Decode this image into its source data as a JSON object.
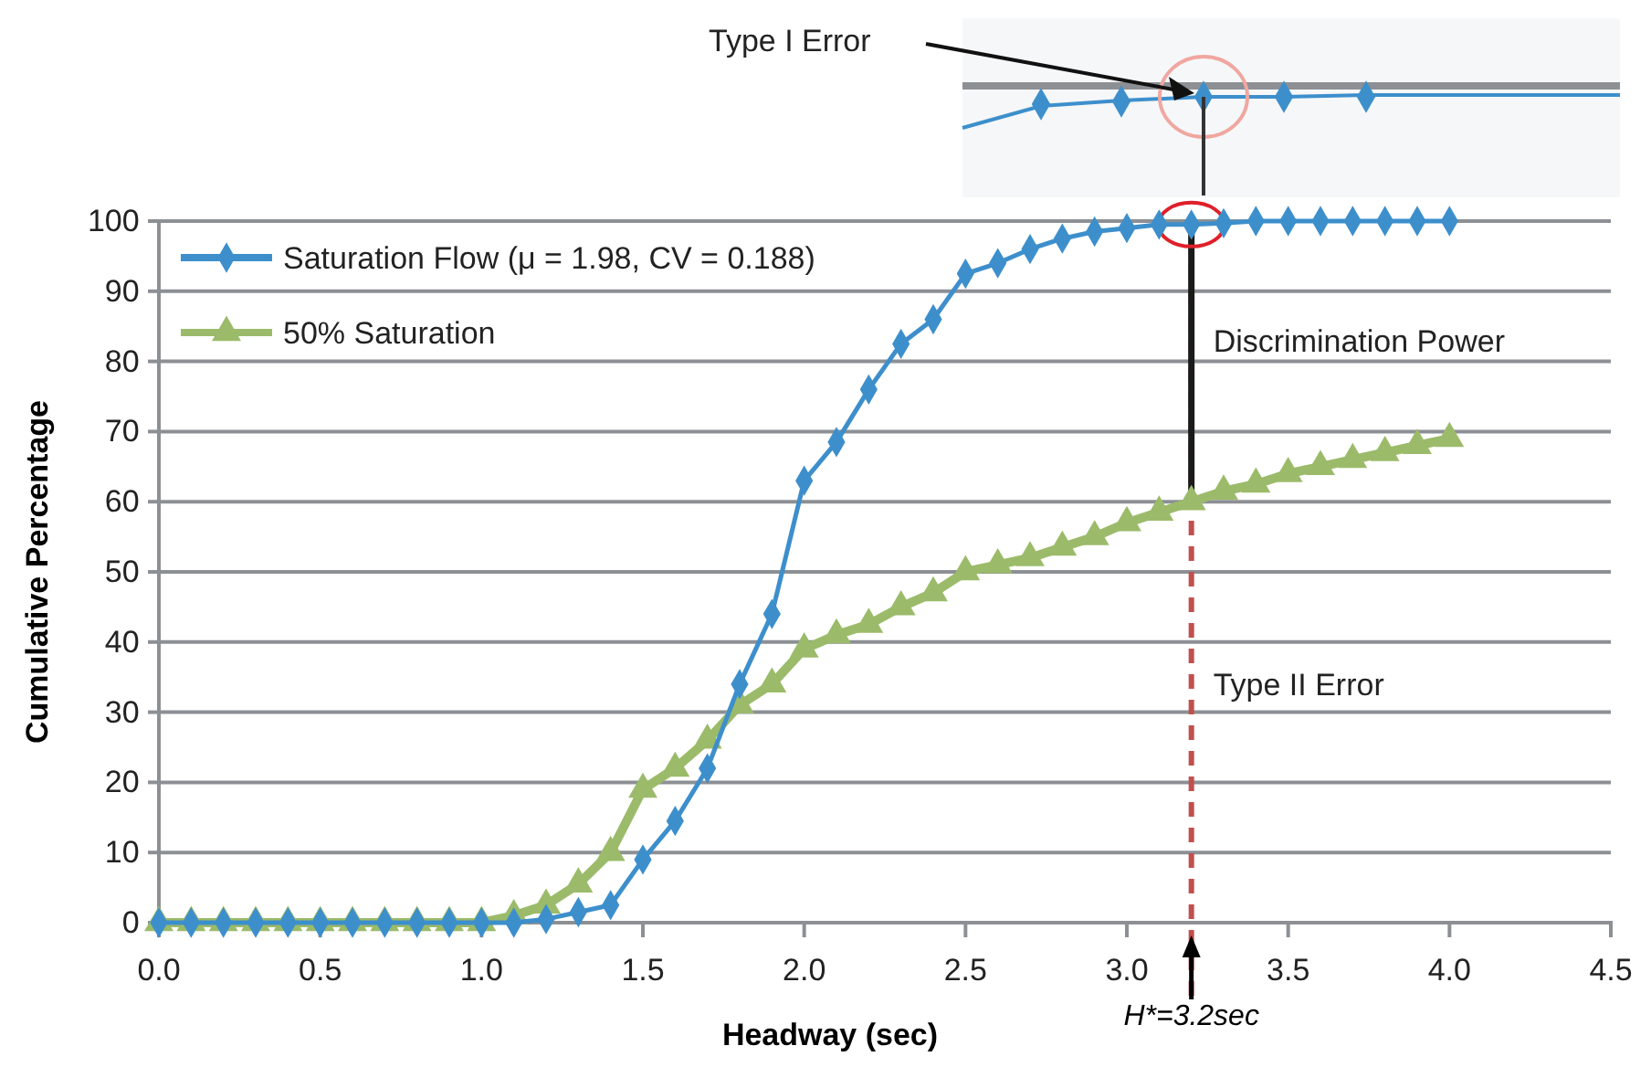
{
  "chart_data": {
    "type": "line",
    "xlabel": "Headway (sec)",
    "ylabel": "Cumulative Percentage",
    "x": [
      0,
      0.1,
      0.2,
      0.3,
      0.4,
      0.5,
      0.6,
      0.7,
      0.8,
      0.9,
      1.0,
      1.1,
      1.2,
      1.3,
      1.4,
      1.5,
      1.6,
      1.7,
      1.8,
      1.9,
      2.0,
      2.1,
      2.2,
      2.3,
      2.4,
      2.5,
      2.6,
      2.7,
      2.8,
      2.9,
      3.0,
      3.1,
      3.2,
      3.3,
      3.4,
      3.5,
      3.6,
      3.7,
      3.8,
      3.9,
      4.0
    ],
    "series": [
      {
        "name": "Saturation Flow (μ = 1.98, CV = 0.188)",
        "color": "#3d8fcc",
        "marker": "diamond",
        "values": [
          0,
          0,
          0,
          0,
          0,
          0,
          0,
          0,
          0,
          0,
          0,
          0,
          0.5,
          1.5,
          2.5,
          9,
          14.5,
          22,
          34,
          44,
          63,
          68.5,
          76,
          82.5,
          86,
          92.5,
          94,
          96,
          97.5,
          98.5,
          99,
          99.5,
          99.5,
          99.7,
          100,
          100,
          100,
          100,
          100,
          100,
          100
        ]
      },
      {
        "name": "50% Saturation",
        "color": "#9bbb6a",
        "marker": "triangle",
        "values": [
          0,
          0,
          0,
          0,
          0,
          0,
          0,
          0,
          0,
          0,
          0,
          1,
          2.5,
          5.5,
          10,
          19,
          22,
          26,
          31,
          34,
          39,
          41,
          42.5,
          45,
          47,
          50,
          51,
          52,
          53.5,
          55,
          57,
          58.5,
          60,
          61.5,
          62.5,
          64,
          65,
          66,
          67,
          68,
          69
        ]
      }
    ],
    "xlim": [
      0,
      4.5
    ],
    "xticks": [
      {
        "value": 0,
        "label": "0.0"
      },
      0.5,
      {
        "value": 1,
        "label": "1.0"
      },
      1.5,
      {
        "value": 2,
        "label": "2.0"
      },
      2.5,
      {
        "value": 3,
        "label": "3.0"
      },
      3.5,
      {
        "value": 4,
        "label": "4.0"
      },
      4.5
    ],
    "ylim": [
      0,
      100
    ],
    "yticks": [
      0,
      10,
      20,
      30,
      40,
      50,
      60,
      70,
      80,
      90,
      100
    ],
    "grid": "y",
    "legend": "top left",
    "line_style": "solid",
    "ref_lines": [
      {
        "axis": "x",
        "value": 3.2,
        "label": "H*=3.2sec",
        "color": "#c0504d",
        "line_style": "dashed"
      }
    ],
    "annotations": [
      "Type I Error",
      {
        "text": "Discrimination Power",
        "x": 3.2,
        "y": 83
      },
      {
        "text": "Type II Error",
        "x": 3.2,
        "y": 34
      }
    ]
  }
}
